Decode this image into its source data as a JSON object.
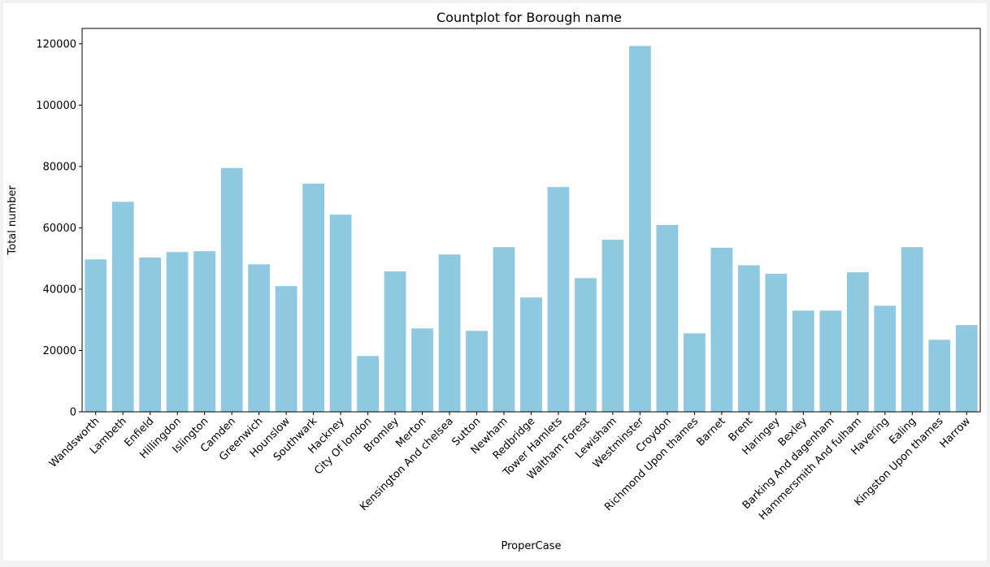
{
  "chart_data": {
    "type": "bar",
    "title": "Countplot for Borough name",
    "xlabel": "ProperCase",
    "ylabel": "Total number",
    "ylim": [
      0,
      125000
    ],
    "yticks": [
      0,
      20000,
      40000,
      60000,
      80000,
      100000,
      120000
    ],
    "grid": false,
    "bar_color": "#8ec9e1",
    "categories": [
      "Wandsworth",
      "Lambeth",
      "Enfield",
      "Hillingdon",
      "Islington",
      "Camden",
      "Greenwich",
      "Hounslow",
      "Southwark",
      "Hackney",
      "City Of london",
      "Bromley",
      "Merton",
      "Kensington And chelsea",
      "Sutton",
      "Newham",
      "Redbridge",
      "Tower Hamlets",
      "Waltham Forest",
      "Lewisham",
      "Westminster",
      "Croydon",
      "Richmond Upon thames",
      "Barnet",
      "Brent",
      "Haringey",
      "Bexley",
      "Barking And dagenham",
      "Hammersmith And fulham",
      "Havering",
      "Ealing",
      "Kingston Upon thames",
      "Harrow"
    ],
    "values": [
      49700,
      68500,
      50300,
      52100,
      52400,
      79500,
      48100,
      41000,
      74400,
      64300,
      18200,
      45800,
      27200,
      51300,
      26400,
      53700,
      37300,
      73300,
      43600,
      56100,
      119300,
      60900,
      25600,
      53500,
      47800,
      45000,
      33000,
      33000,
      45500,
      34600,
      53700,
      23500,
      28300
    ]
  }
}
